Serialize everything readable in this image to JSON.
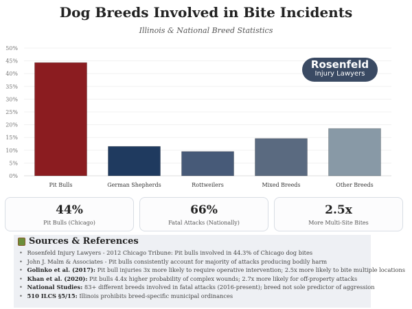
{
  "title": "Dog Breeds Involved in Bite Incidents",
  "subtitle": "Illinois & National Breed Statistics",
  "logo": {
    "line1": "Rosenfeld",
    "line2": "Injury Lawyers",
    "color": "#3a4a63"
  },
  "chart_data": {
    "type": "bar",
    "categories": [
      "Pit Bulls",
      "German Shepherds",
      "Rottweilers",
      "Mixed Breeds",
      "Other Breeds"
    ],
    "values": [
      44.3,
      11.5,
      9.5,
      14.6,
      18.5
    ],
    "colors": [
      "#8b1c20",
      "#1f3a5f",
      "#475a78",
      "#5a6a80",
      "#8899a6"
    ],
    "ylim": [
      0,
      50
    ],
    "yticks": [
      "0%",
      "5%",
      "10%",
      "15%",
      "20%",
      "25%",
      "30%",
      "35%",
      "40%",
      "45%",
      "50%"
    ],
    "grid": true
  },
  "stats": [
    {
      "value": "44%",
      "label": "Pit Bulls (Chicago)"
    },
    {
      "value": "66%",
      "label": "Fatal Attacks (Nationally)"
    },
    {
      "value": "2.5x",
      "label": "More Multi-Site Bites"
    }
  ],
  "sources": {
    "heading": "Sources & References",
    "items": [
      {
        "bold": "",
        "text": "Rosenfeld Injury Lawyers - 2012 Chicago Tribune: Pit bulls involved in 44.3% of Chicago dog bites"
      },
      {
        "bold": "",
        "text": "John J. Malm & Associates - Pit bulls consistently account for majority of attacks producing bodily harm"
      },
      {
        "bold": "Golinko et al. (2017):",
        "text": " Pit bull injuries 3x more likely to require operative intervention; 2.5x more likely to bite multiple locations"
      },
      {
        "bold": "Khan et al. (2020):",
        "text": " Pit bulls 4.4x higher probability of complex wounds; 2.7x more likely for off-property attacks"
      },
      {
        "bold": "National Studies:",
        "text": " 83+ different breeds involved in fatal attacks (2016-present); breed not sole predictor of aggression"
      },
      {
        "bold": "510 ILCS §5/15:",
        "text": " Illinois prohibits breed-specific municipal ordinances"
      }
    ]
  }
}
